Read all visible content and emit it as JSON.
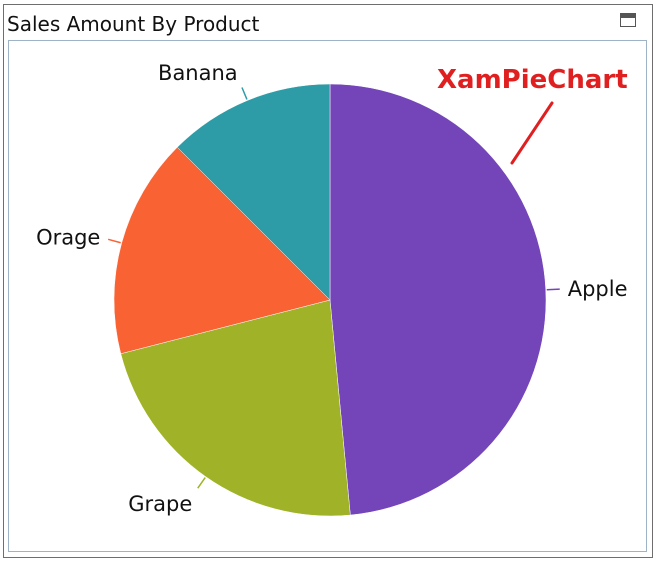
{
  "window": {
    "title": "Sales Amount By Product"
  },
  "annotation": {
    "text": "XamPieChart",
    "color": "#e02020"
  },
  "chart_data": {
    "type": "pie",
    "title": "Sales Amount By Product",
    "categories": [
      "Apple",
      "Grape",
      "Orage",
      "Banana"
    ],
    "values": [
      48.5,
      22.5,
      16.5,
      12.5
    ],
    "colors": [
      "#7445b8",
      "#a0b227",
      "#f96334",
      "#2e9ca6"
    ],
    "start_angle_deg": 0,
    "direction": "clockwise",
    "legend": "none",
    "labels": "outside-with-leader-lines"
  }
}
